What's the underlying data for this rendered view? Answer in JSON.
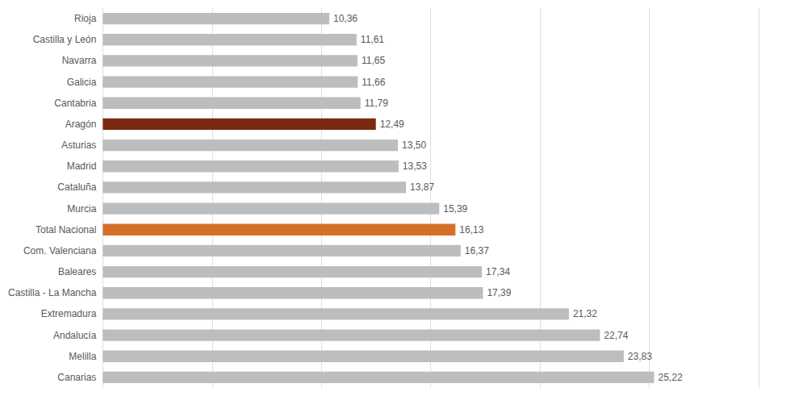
{
  "chart_data": {
    "type": "bar",
    "orientation": "horizontal",
    "categories": [
      "Canarias",
      "Melilla",
      "Andalucía",
      "Extremadura",
      "Castilla - La Mancha",
      "Baleares",
      "Com. Valenciana",
      "Total Nacional",
      "Murcia",
      "Cataluña",
      "Madrid",
      "Asturias",
      "Aragón",
      "Cantabria",
      "Galicia",
      "Navarra",
      "Castilla y León",
      "Rioja"
    ],
    "values": [
      25.22,
      23.83,
      22.74,
      21.32,
      17.39,
      17.34,
      16.37,
      16.13,
      15.39,
      13.87,
      13.53,
      13.5,
      12.49,
      11.79,
      11.66,
      11.65,
      11.61,
      10.36
    ],
    "value_labels": [
      "25,22",
      "23,83",
      "22,74",
      "21,32",
      "17,39",
      "17,34",
      "16,37",
      "16,13",
      "15,39",
      "13,87",
      "13,53",
      "13,50",
      "12,49",
      "11,79",
      "11,66",
      "11,65",
      "11,61",
      "10,36"
    ],
    "colors": [
      "#bdbdbd",
      "#bdbdbd",
      "#bdbdbd",
      "#bdbdbd",
      "#bdbdbd",
      "#bdbdbd",
      "#bdbdbd",
      "#d4702a",
      "#bdbdbd",
      "#bdbdbd",
      "#bdbdbd",
      "#bdbdbd",
      "#7b2a12",
      "#bdbdbd",
      "#bdbdbd",
      "#bdbdbd",
      "#bdbdbd",
      "#bdbdbd"
    ],
    "xlim": [
      0,
      30
    ],
    "xticks": [
      0,
      5,
      10,
      15,
      20,
      25,
      30
    ],
    "grid": true,
    "tick_labels": "y",
    "data_labels": true
  }
}
